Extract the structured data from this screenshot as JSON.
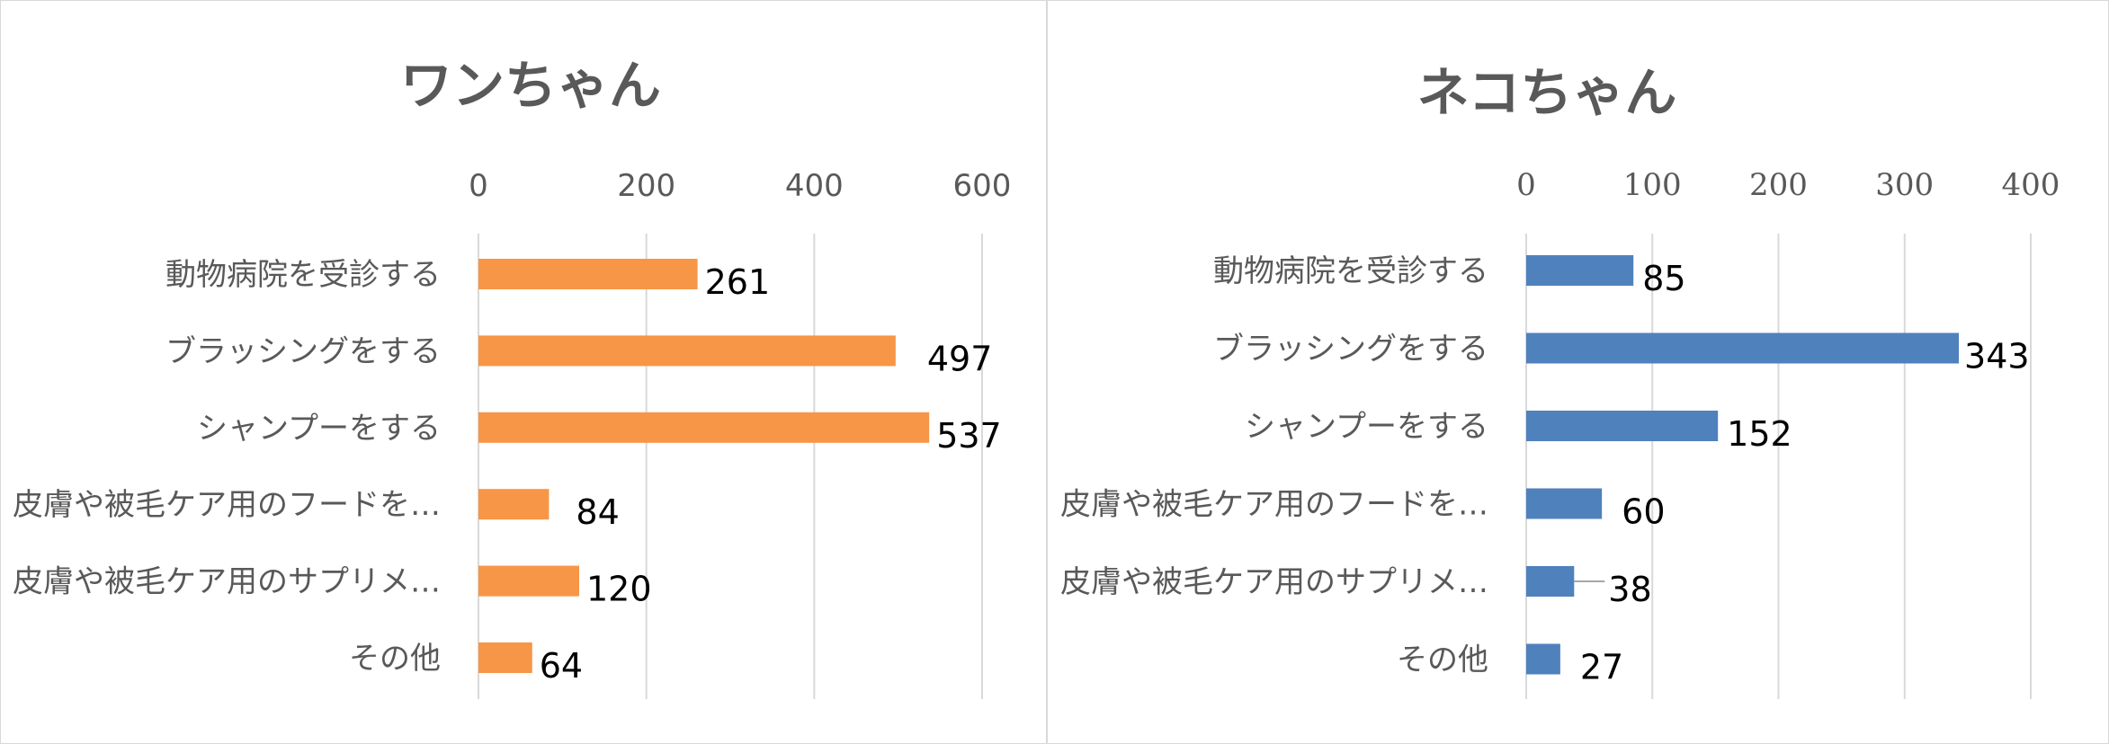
{
  "chart_data": [
    {
      "type": "bar",
      "orientation": "horizontal",
      "title": "ワンちゃん",
      "categories": [
        "動物病院を受診する",
        "ブラッシングをする",
        "シャンプーをする",
        "皮膚や被毛ケア用のフードを…",
        "皮膚や被毛ケア用のサプリメ…",
        "その他"
      ],
      "values": [
        261,
        497,
        537,
        84,
        120,
        64
      ],
      "ticks": [
        "0",
        "200",
        "400",
        "600"
      ],
      "xlim": [
        0,
        600
      ],
      "grid": true,
      "axis_position": "top",
      "color": "#F79646"
    },
    {
      "type": "bar",
      "orientation": "horizontal",
      "title": "ネコちゃん",
      "categories": [
        "動物病院を受診する",
        "ブラッシングをする",
        "シャンプーをする",
        "皮膚や被毛ケア用のフードを…",
        "皮膚や被毛ケア用のサプリメ…",
        "その他"
      ],
      "values": [
        85,
        343,
        152,
        60,
        38,
        27
      ],
      "ticks": [
        "0",
        "100",
        "200",
        "300",
        "400"
      ],
      "xlim": [
        0,
        400
      ],
      "grid": true,
      "axis_position": "top",
      "color": "#4F81BD"
    }
  ]
}
